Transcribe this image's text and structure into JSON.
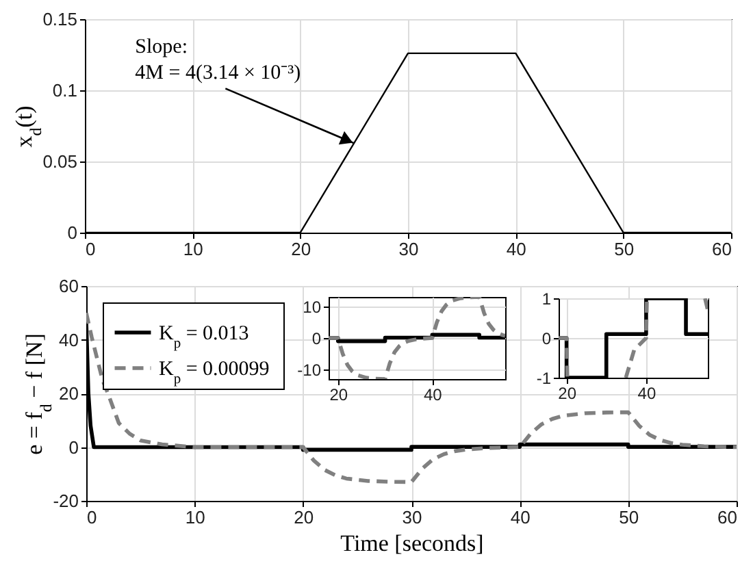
{
  "chart_data": [
    {
      "type": "line",
      "ylabel": "x$_{d}$(t)",
      "x": [
        0,
        20,
        30,
        40,
        50,
        60
      ],
      "values": [
        0,
        0,
        0.126,
        0.126,
        0,
        0
      ],
      "color": "#000000",
      "xlim": [
        0,
        60
      ],
      "ylim": [
        0,
        0.15
      ],
      "xticks": [
        0,
        10,
        20,
        30,
        40,
        50,
        60
      ],
      "yticks": [
        0,
        0.05,
        0.1,
        0.15
      ],
      "grid": true,
      "annotations": [
        {
          "text": "Slope:\n4M = 4(3.14 × 10⁻³)",
          "x": 25,
          "y": 0.0628
        }
      ]
    },
    {
      "type": "line",
      "xlabel": "Time [seconds]",
      "ylabel": "e = f$_{d}$ − f [N]",
      "xlim": [
        0,
        60
      ],
      "ylim": [
        -20,
        60
      ],
      "xticks": [
        0,
        10,
        20,
        30,
        40,
        50,
        60
      ],
      "yticks": [
        -20,
        0,
        20,
        40,
        60
      ],
      "grid": true,
      "legend": "top left",
      "series": [
        {
          "name": "K$_{p}$ = 0.013",
          "color": "#000000",
          "x": [
            0,
            0.2,
            0.4,
            0.7,
            20,
            20,
            30,
            30,
            40,
            40,
            50,
            50,
            60
          ],
          "values": [
            47,
            20,
            8,
            0,
            0,
            -1,
            -1,
            0.1,
            0.1,
            1,
            1,
            0.1,
            0.1
          ]
        },
        {
          "name": "K$_{p}$ = 0.00099",
          "color": "#808080",
          "line_style": "dashed",
          "x": [
            0,
            0.5,
            1,
            1.5,
            2,
            3,
            4,
            5,
            7,
            10,
            20,
            21,
            22,
            23,
            24,
            26,
            28,
            30,
            31,
            32,
            33,
            34,
            35,
            37,
            40,
            41,
            42,
            43,
            44,
            46,
            48,
            50,
            51,
            52,
            53,
            54,
            55,
            57,
            60
          ],
          "values": [
            50,
            41,
            33,
            25,
            20,
            9,
            5,
            2.5,
            1,
            0,
            0,
            -5,
            -8.5,
            -10.5,
            -11.7,
            -12.6,
            -12.9,
            -13,
            -8,
            -4.5,
            -2.6,
            -1.5,
            -0.9,
            -0.3,
            0,
            5,
            8.5,
            10.5,
            11.7,
            12.6,
            12.9,
            13,
            8,
            4.5,
            2.6,
            1.5,
            0.9,
            0.3,
            0
          ]
        }
      ]
    },
    {
      "type": "line",
      "xlim": [
        18,
        55.5
      ],
      "ylim": [
        -13,
        13
      ],
      "xticks": [
        20,
        40
      ],
      "yticks": [
        -10,
        0,
        10
      ],
      "grid": true,
      "series": [
        {
          "color": "#000000",
          "x": [
            18,
            20,
            20,
            30,
            30,
            40,
            40,
            50,
            50,
            55.5
          ],
          "values": [
            0,
            0,
            -1,
            -1,
            0.1,
            0.1,
            1,
            1,
            0.1,
            0.1
          ]
        },
        {
          "color": "#808080",
          "line_style": "dashed",
          "x": [
            18,
            20,
            21,
            22,
            23,
            24,
            26,
            28,
            30,
            31,
            32,
            33,
            34,
            35,
            37,
            40,
            41,
            42,
            43,
            44,
            46,
            48,
            50,
            51,
            52,
            53,
            54,
            55,
            55.5
          ],
          "values": [
            0,
            0,
            -5,
            -8.5,
            -10.5,
            -11.7,
            -12.6,
            -12.9,
            -13,
            -8,
            -4.5,
            -2.6,
            -1.5,
            -0.9,
            -0.3,
            0,
            5,
            8.5,
            10.5,
            11.7,
            12.6,
            12.9,
            13,
            8,
            4.5,
            2.6,
            1.5,
            0.9,
            0.7
          ]
        }
      ]
    },
    {
      "type": "line",
      "xlim": [
        18,
        55.5
      ],
      "ylim": [
        -1,
        1
      ],
      "xticks": [
        20,
        40
      ],
      "yticks": [
        -1,
        0,
        1
      ],
      "grid": true,
      "series": [
        {
          "color": "#000000",
          "x": [
            18,
            20,
            20,
            30,
            30,
            40,
            40,
            50,
            50,
            55.5
          ],
          "values": [
            0,
            0,
            -1,
            -1,
            0.1,
            0.1,
            1,
            1,
            0.1,
            0.1
          ]
        },
        {
          "color": "#808080",
          "line_style": "dashed",
          "x": [
            18,
            20,
            20.2,
            28,
            34.9,
            37,
            40,
            40.2,
            48,
            54.8,
            55.5
          ],
          "values": [
            0,
            0,
            -1,
            null,
            -1,
            -0.3,
            0,
            1,
            null,
            1,
            0.7
          ]
        }
      ]
    }
  ]
}
